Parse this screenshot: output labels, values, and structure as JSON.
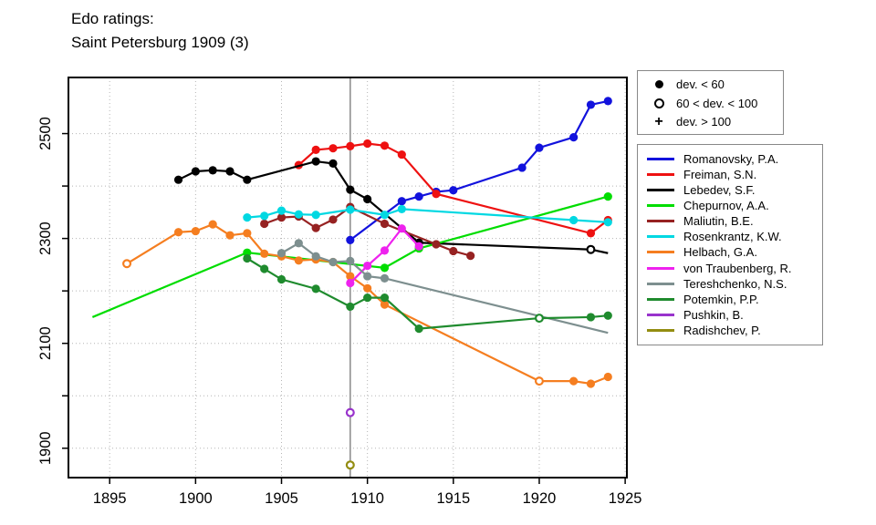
{
  "title": {
    "line1": "Edo ratings:",
    "line2": "Saint Petersburg 1909 (3)"
  },
  "marker_legend": {
    "items": [
      {
        "marker": "filled-circle",
        "label": "dev. < 60"
      },
      {
        "marker": "open-circle",
        "label": "60 < dev. < 100"
      },
      {
        "marker": "plus",
        "label": "dev. > 100"
      }
    ]
  },
  "chart_data": {
    "type": "line",
    "title": "Edo ratings: Saint Petersburg 1909 (3)",
    "xlabel": "",
    "ylabel": "",
    "xlim": [
      1892.6,
      1925.1
    ],
    "ylim": [
      1844,
      2607
    ],
    "x_ticks": [
      1895,
      1900,
      1905,
      1910,
      1915,
      1920,
      1925
    ],
    "y_ticks_labeled": [
      1900,
      2100,
      2300,
      2500
    ],
    "y_ticks_all": [
      1900,
      2000,
      2100,
      2200,
      2300,
      2400,
      2500
    ],
    "grid": true,
    "grid_color": "#b5b5b5",
    "event_line_x": 1909,
    "event_line_color": "#909090",
    "marker_meaning": {
      "f": "dev. < 60",
      "o": "60 < dev. < 100",
      "p": "dev. > 100"
    },
    "series": [
      {
        "name": "Romanovsky, P.A.",
        "color": "#1212dd",
        "points": [
          {
            "x": 1909,
            "y": 2297,
            "m": "f"
          },
          {
            "x": 1912,
            "y": 2371,
            "m": "f"
          },
          {
            "x": 1913,
            "y": 2380,
            "m": "f"
          },
          {
            "x": 1914,
            "y": 2389,
            "m": "f"
          },
          {
            "x": 1915,
            "y": 2392,
            "m": "f"
          },
          {
            "x": 1919,
            "y": 2435,
            "m": "f"
          },
          {
            "x": 1920,
            "y": 2473,
            "m": "f"
          },
          {
            "x": 1922,
            "y": 2493,
            "m": "f"
          },
          {
            "x": 1923,
            "y": 2555,
            "m": "f"
          },
          {
            "x": 1924,
            "y": 2562,
            "m": "f"
          }
        ]
      },
      {
        "name": "Freiman, S.N.",
        "color": "#ee1111",
        "points": [
          {
            "x": 1906,
            "y": 2440,
            "m": "f"
          },
          {
            "x": 1907,
            "y": 2469,
            "m": "f"
          },
          {
            "x": 1908,
            "y": 2472,
            "m": "f"
          },
          {
            "x": 1909,
            "y": 2476,
            "m": "f"
          },
          {
            "x": 1910,
            "y": 2481,
            "m": "f"
          },
          {
            "x": 1911,
            "y": 2477,
            "m": "f"
          },
          {
            "x": 1912,
            "y": 2460,
            "m": "f"
          },
          {
            "x": 1914,
            "y": 2385,
            "m": "f"
          },
          {
            "x": 1923,
            "y": 2310,
            "m": "f"
          },
          {
            "x": 1924,
            "y": 2335,
            "m": "f"
          }
        ]
      },
      {
        "name": "Lebedev, S.F.",
        "color": "#000000",
        "points": [
          {
            "x": 1899,
            "y": 2412,
            "m": "f"
          },
          {
            "x": 1900,
            "y": 2428,
            "m": "f"
          },
          {
            "x": 1901,
            "y": 2430,
            "m": "f"
          },
          {
            "x": 1902,
            "y": 2428,
            "m": "f"
          },
          {
            "x": 1903,
            "y": 2412,
            "m": "f"
          },
          {
            "x": 1907,
            "y": 2447,
            "m": "f"
          },
          {
            "x": 1908,
            "y": 2443,
            "m": "f"
          },
          {
            "x": 1909,
            "y": 2393,
            "m": "f"
          },
          {
            "x": 1910,
            "y": 2375,
            "m": "f"
          },
          {
            "x": 1913,
            "y": 2292,
            "m": "f"
          },
          {
            "x": 1923,
            "y": 2279,
            "m": "o"
          },
          {
            "x": 1924,
            "y": 2272,
            "m": "n"
          }
        ]
      },
      {
        "name": "Chepurnov, A.A.",
        "color": "#00dd00",
        "points": [
          {
            "x": 1894,
            "y": 2150,
            "m": "n"
          },
          {
            "x": 1903,
            "y": 2273,
            "m": "f"
          },
          {
            "x": 1911,
            "y": 2244,
            "m": "f"
          },
          {
            "x": 1913,
            "y": 2281,
            "m": "f"
          },
          {
            "x": 1924,
            "y": 2380,
            "m": "f"
          }
        ]
      },
      {
        "name": "Maliutin, B.E.",
        "color": "#962222",
        "points": [
          {
            "x": 1904,
            "y": 2328,
            "m": "f"
          },
          {
            "x": 1905,
            "y": 2340,
            "m": "f"
          },
          {
            "x": 1906,
            "y": 2342,
            "m": "f"
          },
          {
            "x": 1907,
            "y": 2320,
            "m": "f"
          },
          {
            "x": 1908,
            "y": 2336,
            "m": "f"
          },
          {
            "x": 1909,
            "y": 2360,
            "m": "f"
          },
          {
            "x": 1911,
            "y": 2328,
            "m": "f"
          },
          {
            "x": 1914,
            "y": 2289,
            "m": "f"
          },
          {
            "x": 1915,
            "y": 2276,
            "m": "f"
          },
          {
            "x": 1916,
            "y": 2267,
            "m": "f"
          }
        ]
      },
      {
        "name": "Rosenkrantz, K.W.",
        "color": "#00d8e2",
        "points": [
          {
            "x": 1903,
            "y": 2340,
            "m": "f"
          },
          {
            "x": 1904,
            "y": 2343,
            "m": "f"
          },
          {
            "x": 1905,
            "y": 2353,
            "m": "f"
          },
          {
            "x": 1906,
            "y": 2346,
            "m": "f"
          },
          {
            "x": 1907,
            "y": 2345,
            "m": "f"
          },
          {
            "x": 1909,
            "y": 2355,
            "m": "f"
          },
          {
            "x": 1911,
            "y": 2345,
            "m": "f"
          },
          {
            "x": 1912,
            "y": 2356,
            "m": "f"
          },
          {
            "x": 1922,
            "y": 2335,
            "m": "f"
          },
          {
            "x": 1924,
            "y": 2331,
            "m": "f"
          }
        ]
      },
      {
        "name": "Helbach, G.A.",
        "color": "#f57e20",
        "points": [
          {
            "x": 1896,
            "y": 2252,
            "m": "o"
          },
          {
            "x": 1899,
            "y": 2312,
            "m": "f"
          },
          {
            "x": 1900,
            "y": 2314,
            "m": "f"
          },
          {
            "x": 1901,
            "y": 2327,
            "m": "f"
          },
          {
            "x": 1902,
            "y": 2306,
            "m": "f"
          },
          {
            "x": 1903,
            "y": 2310,
            "m": "f"
          },
          {
            "x": 1904,
            "y": 2271,
            "m": "f"
          },
          {
            "x": 1905,
            "y": 2266,
            "m": "f"
          },
          {
            "x": 1906,
            "y": 2258,
            "m": "f"
          },
          {
            "x": 1907,
            "y": 2260,
            "m": "f"
          },
          {
            "x": 1908,
            "y": 2255,
            "m": "f"
          },
          {
            "x": 1909,
            "y": 2228,
            "m": "f"
          },
          {
            "x": 1910,
            "y": 2205,
            "m": "f"
          },
          {
            "x": 1911,
            "y": 2174,
            "m": "f"
          },
          {
            "x": 1920,
            "y": 2028,
            "m": "o"
          },
          {
            "x": 1922,
            "y": 2028,
            "m": "f"
          },
          {
            "x": 1923,
            "y": 2023,
            "m": "f"
          },
          {
            "x": 1924,
            "y": 2036,
            "m": "f"
          }
        ]
      },
      {
        "name": "von Traubenberg, R.",
        "color": "#ee22ee",
        "points": [
          {
            "x": 1909,
            "y": 2215,
            "m": "f"
          },
          {
            "x": 1910,
            "y": 2248,
            "m": "f"
          },
          {
            "x": 1911,
            "y": 2277,
            "m": "f"
          },
          {
            "x": 1912,
            "y": 2319,
            "m": "f"
          },
          {
            "x": 1913,
            "y": 2285,
            "m": "f"
          }
        ]
      },
      {
        "name": "Tereshchenko, N.S.",
        "color": "#7d8f8f",
        "points": [
          {
            "x": 1905,
            "y": 2272,
            "m": "f"
          },
          {
            "x": 1906,
            "y": 2291,
            "m": "f"
          },
          {
            "x": 1907,
            "y": 2266,
            "m": "f"
          },
          {
            "x": 1908,
            "y": 2255,
            "m": "f"
          },
          {
            "x": 1909,
            "y": 2257,
            "m": "f"
          },
          {
            "x": 1910,
            "y": 2228,
            "m": "f"
          },
          {
            "x": 1911,
            "y": 2224,
            "m": "f"
          },
          {
            "x": 1924,
            "y": 2120,
            "m": "n"
          }
        ]
      },
      {
        "name": "Potemkin, P.P.",
        "color": "#1f8b2e",
        "points": [
          {
            "x": 1903,
            "y": 2262,
            "m": "f"
          },
          {
            "x": 1904,
            "y": 2242,
            "m": "f"
          },
          {
            "x": 1905,
            "y": 2222,
            "m": "f"
          },
          {
            "x": 1907,
            "y": 2204,
            "m": "f"
          },
          {
            "x": 1909,
            "y": 2170,
            "m": "f"
          },
          {
            "x": 1910,
            "y": 2187,
            "m": "f"
          },
          {
            "x": 1911,
            "y": 2187,
            "m": "f"
          },
          {
            "x": 1913,
            "y": 2128,
            "m": "f"
          },
          {
            "x": 1920,
            "y": 2148,
            "m": "o"
          },
          {
            "x": 1923,
            "y": 2150,
            "m": "f"
          },
          {
            "x": 1924,
            "y": 2153,
            "m": "f"
          }
        ]
      },
      {
        "name": "Pushkin, B.",
        "color": "#9933cc",
        "points": [
          {
            "x": 1909,
            "y": 1968,
            "m": "o"
          }
        ]
      },
      {
        "name": "Radishchev, P.",
        "color": "#938d11",
        "points": [
          {
            "x": 1909,
            "y": 1868,
            "m": "o"
          }
        ]
      }
    ]
  }
}
